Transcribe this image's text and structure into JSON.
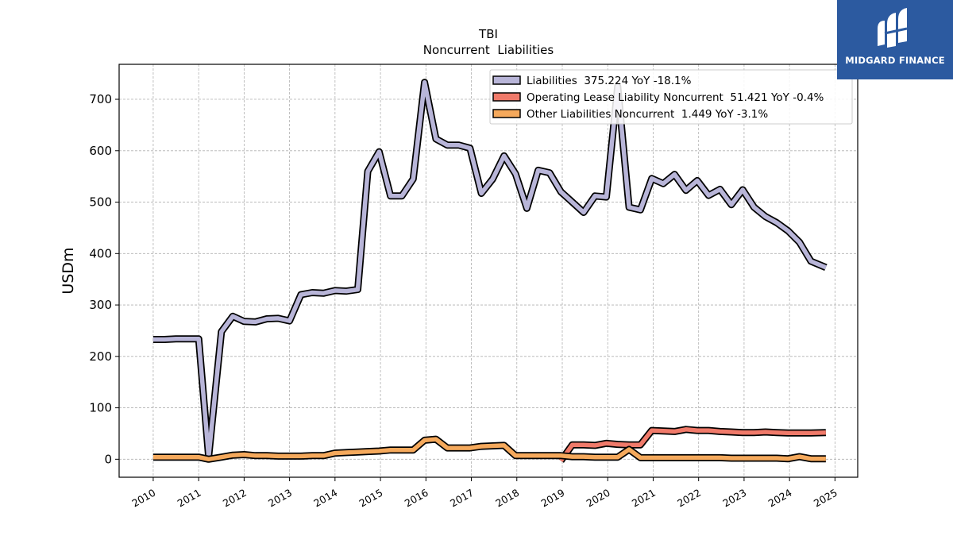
{
  "brand": {
    "name": "MIDGARD FINANCE",
    "bg": "#2c5aa0"
  },
  "chart_data": {
    "type": "line",
    "title": "TBI",
    "subtitle": "Noncurrent  Liabilities",
    "ylabel": "USDm",
    "xlabel": "",
    "ylim": [
      -35,
      768
    ],
    "xlim": [
      2009.25,
      2025.5
    ],
    "yticks": [
      0,
      100,
      200,
      300,
      400,
      500,
      600,
      700
    ],
    "xticks": [
      "2010",
      "2011",
      "2012",
      "2013",
      "2014",
      "2015",
      "2016",
      "2017",
      "2018",
      "2019",
      "2020",
      "2021",
      "2022",
      "2023",
      "2024",
      "2025"
    ],
    "grid": true,
    "legend_position": "top-right",
    "series": [
      {
        "name": "Liabilities  375.224 YoY -18.1%",
        "color": "#b8b5d8",
        "points": [
          [
            2010.0,
            233
          ],
          [
            2010.25,
            233
          ],
          [
            2010.5,
            234
          ],
          [
            2010.75,
            234
          ],
          [
            2011.0,
            234
          ],
          [
            2011.22,
            5
          ],
          [
            2011.5,
            248
          ],
          [
            2011.75,
            278
          ],
          [
            2012.0,
            268
          ],
          [
            2012.25,
            267
          ],
          [
            2012.5,
            273
          ],
          [
            2012.75,
            274
          ],
          [
            2013.0,
            269
          ],
          [
            2013.25,
            320
          ],
          [
            2013.5,
            324
          ],
          [
            2013.75,
            323
          ],
          [
            2014.0,
            328
          ],
          [
            2014.25,
            327
          ],
          [
            2014.5,
            330
          ],
          [
            2014.72,
            560
          ],
          [
            2014.97,
            598
          ],
          [
            2015.22,
            512
          ],
          [
            2015.47,
            512
          ],
          [
            2015.72,
            545
          ],
          [
            2015.97,
            733
          ],
          [
            2016.22,
            623
          ],
          [
            2016.47,
            611
          ],
          [
            2016.72,
            611
          ],
          [
            2016.97,
            605
          ],
          [
            2017.22,
            517
          ],
          [
            2017.47,
            545
          ],
          [
            2017.72,
            590
          ],
          [
            2017.97,
            555
          ],
          [
            2018.22,
            488
          ],
          [
            2018.47,
            562
          ],
          [
            2018.72,
            557
          ],
          [
            2018.97,
            520
          ],
          [
            2019.22,
            500
          ],
          [
            2019.47,
            480
          ],
          [
            2019.72,
            512
          ],
          [
            2019.97,
            510
          ],
          [
            2020.22,
            725
          ],
          [
            2020.47,
            490
          ],
          [
            2020.72,
            485
          ],
          [
            2020.97,
            546
          ],
          [
            2021.22,
            536
          ],
          [
            2021.47,
            554
          ],
          [
            2021.72,
            523
          ],
          [
            2021.97,
            542
          ],
          [
            2022.22,
            513
          ],
          [
            2022.47,
            525
          ],
          [
            2022.72,
            495
          ],
          [
            2022.97,
            524
          ],
          [
            2023.22,
            490
          ],
          [
            2023.47,
            472
          ],
          [
            2023.72,
            460
          ],
          [
            2023.97,
            444
          ],
          [
            2024.22,
            422
          ],
          [
            2024.47,
            385
          ],
          [
            2024.8,
            373
          ]
        ]
      },
      {
        "name": "Operating Lease Liability Noncurrent  51.421 YoY -0.4%",
        "color": "#f07a6a",
        "points": [
          [
            2018.97,
            -3
          ],
          [
            2019.22,
            28
          ],
          [
            2019.47,
            28
          ],
          [
            2019.72,
            27
          ],
          [
            2019.97,
            31
          ],
          [
            2020.22,
            29
          ],
          [
            2020.47,
            28
          ],
          [
            2020.72,
            28
          ],
          [
            2020.97,
            56
          ],
          [
            2021.22,
            55
          ],
          [
            2021.47,
            54
          ],
          [
            2021.72,
            58
          ],
          [
            2021.97,
            56
          ],
          [
            2022.22,
            56
          ],
          [
            2022.47,
            54
          ],
          [
            2022.72,
            53
          ],
          [
            2022.97,
            52
          ],
          [
            2023.22,
            52
          ],
          [
            2023.47,
            53
          ],
          [
            2023.72,
            52
          ],
          [
            2023.97,
            51
          ],
          [
            2024.22,
            51
          ],
          [
            2024.47,
            51
          ],
          [
            2024.8,
            52
          ]
        ]
      },
      {
        "name": "Other Liabilities Noncurrent  1.449 YoY -3.1%",
        "color": "#f5a95c",
        "points": [
          [
            2010.0,
            4
          ],
          [
            2010.25,
            4
          ],
          [
            2010.5,
            4
          ],
          [
            2010.75,
            4
          ],
          [
            2011.0,
            4
          ],
          [
            2011.22,
            0
          ],
          [
            2011.5,
            4
          ],
          [
            2011.75,
            8
          ],
          [
            2012.0,
            9
          ],
          [
            2012.25,
            7
          ],
          [
            2012.5,
            7
          ],
          [
            2012.75,
            6
          ],
          [
            2013.0,
            6
          ],
          [
            2013.25,
            6
          ],
          [
            2013.5,
            7
          ],
          [
            2013.75,
            7
          ],
          [
            2014.0,
            12
          ],
          [
            2014.25,
            13
          ],
          [
            2014.5,
            14
          ],
          [
            2014.72,
            15
          ],
          [
            2014.97,
            16
          ],
          [
            2015.22,
            18
          ],
          [
            2015.47,
            18
          ],
          [
            2015.72,
            18
          ],
          [
            2015.97,
            37
          ],
          [
            2016.22,
            39
          ],
          [
            2016.47,
            22
          ],
          [
            2016.72,
            22
          ],
          [
            2016.97,
            22
          ],
          [
            2017.22,
            25
          ],
          [
            2017.47,
            26
          ],
          [
            2017.72,
            27
          ],
          [
            2017.97,
            7
          ],
          [
            2018.22,
            7
          ],
          [
            2018.47,
            7
          ],
          [
            2018.72,
            7
          ],
          [
            2018.97,
            7
          ],
          [
            2019.22,
            5
          ],
          [
            2019.47,
            5
          ],
          [
            2019.72,
            4
          ],
          [
            2019.97,
            4
          ],
          [
            2020.22,
            4
          ],
          [
            2020.47,
            19
          ],
          [
            2020.72,
            3
          ],
          [
            2020.97,
            3
          ],
          [
            2021.22,
            3
          ],
          [
            2021.47,
            3
          ],
          [
            2021.72,
            3
          ],
          [
            2021.97,
            3
          ],
          [
            2022.22,
            3
          ],
          [
            2022.47,
            3
          ],
          [
            2022.72,
            2
          ],
          [
            2022.97,
            2
          ],
          [
            2023.22,
            2
          ],
          [
            2023.47,
            2
          ],
          [
            2023.72,
            2
          ],
          [
            2023.97,
            1
          ],
          [
            2024.22,
            5
          ],
          [
            2024.47,
            1
          ],
          [
            2024.8,
            1
          ]
        ]
      }
    ]
  }
}
